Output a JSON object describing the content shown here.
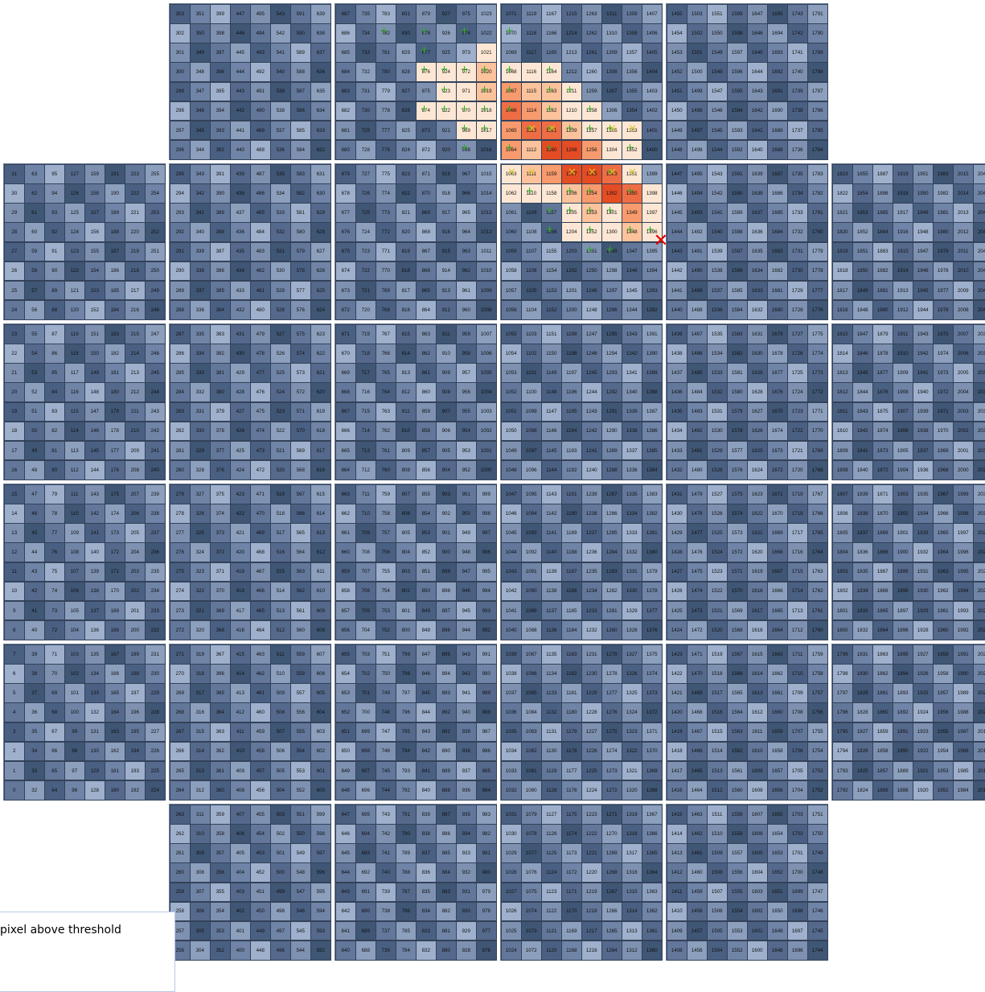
{
  "legend": {
    "label": "pixel above threshold"
  },
  "colors": {
    "base": [
      "#3f5675",
      "#4a6082",
      "#55698c",
      "#62779a",
      "#6f84a6",
      "#7e91b0",
      "#8c9fbd",
      "#9eb0cc"
    ],
    "hot": {
      "1": "#fde7d4",
      "2": "#fbc29c",
      "3": "#f79a6d",
      "4": "#ee6d44",
      "5": "#e44c24"
    },
    "x_mark": "#e00000",
    "plus_mark": "#2fae1f",
    "cross_mark": "#d9c821"
  },
  "icons": {
    "off_grid_marker": "red-x-icon",
    "above_threshold_marker": "green-plus-icon",
    "cross_marker": "yellow-cross-icon"
  },
  "camera": {
    "modules_layout": [
      {
        "col": 1,
        "row": 0
      },
      {
        "col": 2,
        "row": 0
      },
      {
        "col": 3,
        "row": 0
      },
      {
        "col": 4,
        "row": 0
      },
      {
        "col": 0,
        "row": 1
      },
      {
        "col": 1,
        "row": 1
      },
      {
        "col": 2,
        "row": 1
      },
      {
        "col": 3,
        "row": 1
      },
      {
        "col": 4,
        "row": 1
      },
      {
        "col": 5,
        "row": 1
      },
      {
        "col": 0,
        "row": 2
      },
      {
        "col": 1,
        "row": 2
      },
      {
        "col": 2,
        "row": 2
      },
      {
        "col": 3,
        "row": 2
      },
      {
        "col": 4,
        "row": 2
      },
      {
        "col": 5,
        "row": 2
      },
      {
        "col": 0,
        "row": 3
      },
      {
        "col": 1,
        "row": 3
      },
      {
        "col": 2,
        "row": 3
      },
      {
        "col": 3,
        "row": 3
      },
      {
        "col": 4,
        "row": 3
      },
      {
        "col": 5,
        "row": 3
      },
      {
        "col": 0,
        "row": 4
      },
      {
        "col": 1,
        "row": 4
      },
      {
        "col": 2,
        "row": 4
      },
      {
        "col": 3,
        "row": 4
      },
      {
        "col": 4,
        "row": 4
      },
      {
        "col": 5,
        "row": 4
      },
      {
        "col": 1,
        "row": 5
      },
      {
        "col": 2,
        "row": 5
      },
      {
        "col": 3,
        "row": 5
      },
      {
        "col": 4,
        "row": 5
      }
    ],
    "hot_pixels": {
      "1021": 1,
      "972": 1,
      "924": 1,
      "876": 1,
      "1020": 2,
      "1019": 2,
      "971": 1,
      "923": 1,
      "1018": 1,
      "970": 1,
      "922": 1,
      "874": 1,
      "969": 1,
      "1017": 1,
      "1068": 1,
      "1116": 1,
      "1164": 1,
      "1067": 3,
      "1115": 2,
      "1163": 2,
      "1211": 1,
      "1066": 4,
      "1114": 3,
      "1162": 2,
      "1210": 1,
      "1258": 1,
      "1065": 3,
      "1113": 4,
      "1161": 4,
      "1209": 2,
      "1257": 1,
      "1305": 1,
      "1353": 1,
      "1064": 3,
      "1112": 2,
      "1160": 5,
      "1208": 5,
      "1256": 3,
      "1304": 1,
      "1352": 1,
      "1063": 1,
      "1111": 2,
      "1159": 3,
      "1207": 5,
      "1255": 5,
      "1303": 4,
      "1351": 1,
      "1062": 1,
      "1110": 1,
      "1158": 1,
      "1206": 2,
      "1254": 3,
      "1302": 5,
      "1350": 4,
      "1398": 1,
      "1205": 1,
      "1253": 2,
      "1301": 1,
      "1349": 3,
      "1397": 1,
      "1204": 1,
      "1252": 1,
      "1300": 1,
      "1348": 2,
      "1396": 1
    },
    "plus_marks": [
      782,
      878,
      974,
      877,
      876,
      924,
      972,
      1020,
      1019,
      923,
      970,
      1018,
      922,
      874,
      968,
      1070,
      1068,
      1164,
      1067,
      1163,
      1211,
      1066,
      1162,
      1258,
      1113,
      1064,
      1160,
      1303,
      1110,
      1206,
      1301,
      1157,
      1205,
      1253,
      1348,
      1156,
      1252,
      1396,
      1251,
      1299,
      1252,
      1254,
      1350,
      1352,
      1305,
      1257,
      1161,
      1209,
      1017,
      969
    ],
    "cross_marks": [
      1303,
      1207,
      1255,
      1113,
      1161,
      1305,
      1353,
      1063,
      1111,
      1351
    ]
  }
}
